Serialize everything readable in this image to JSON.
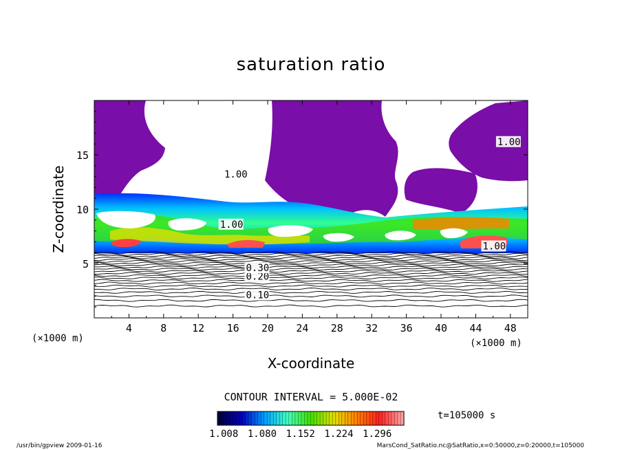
{
  "chart_data": {
    "type": "heatmap",
    "title": "saturation ratio",
    "xlabel": "X-coordinate",
    "ylabel": "Z-coordinate",
    "x_units": "(×1000 m)",
    "y_units": "(×1000 m)",
    "xlim": [
      0,
      50
    ],
    "ylim": [
      0,
      20
    ],
    "x_ticks": [
      4,
      8,
      12,
      16,
      20,
      24,
      28,
      32,
      36,
      40,
      44,
      48
    ],
    "y_ticks": [
      5,
      10,
      15
    ],
    "contour_interval_label": "CONTOUR INTERVAL = 5.000E-02",
    "time_label": "t=105000 s",
    "colorbar": {
      "tick_labels": [
        "1.008",
        "1.080",
        "1.152",
        "1.224",
        "1.296"
      ],
      "tick_values": [
        1.008,
        1.08,
        1.152,
        1.224,
        1.296
      ],
      "colors": [
        "#000040",
        "#0000c0",
        "#00a0ff",
        "#40ffc0",
        "#40e000",
        "#e0e000",
        "#ff8000",
        "#ff2020",
        "#ffa0a0"
      ]
    },
    "contour_labels": [
      {
        "text": "0.10",
        "x": 17.5,
        "z": 1.8
      },
      {
        "text": "0.20",
        "x": 17.5,
        "z": 3.5
      },
      {
        "text": "0.30",
        "x": 17.5,
        "z": 4.3
      },
      {
        "text": "1.00",
        "x": 14.5,
        "z": 8.3
      },
      {
        "text": "1.00",
        "x": 15.0,
        "z": 12.9
      },
      {
        "text": "1.00",
        "x": 44.8,
        "z": 6.3
      },
      {
        "text": "1.00",
        "x": 46.5,
        "z": 15.9
      }
    ],
    "regions": {
      "purple": "#7a0ea8",
      "supersaturated_band_z": [
        6,
        11.5
      ],
      "stable_layer_z": [
        0,
        6
      ]
    }
  },
  "footer": {
    "left": "/usr/bin/gpview  2009-01-16",
    "right": "MarsCond_SatRatio.nc@SatRatio,x=0:50000,z=0:20000,t=105000"
  }
}
